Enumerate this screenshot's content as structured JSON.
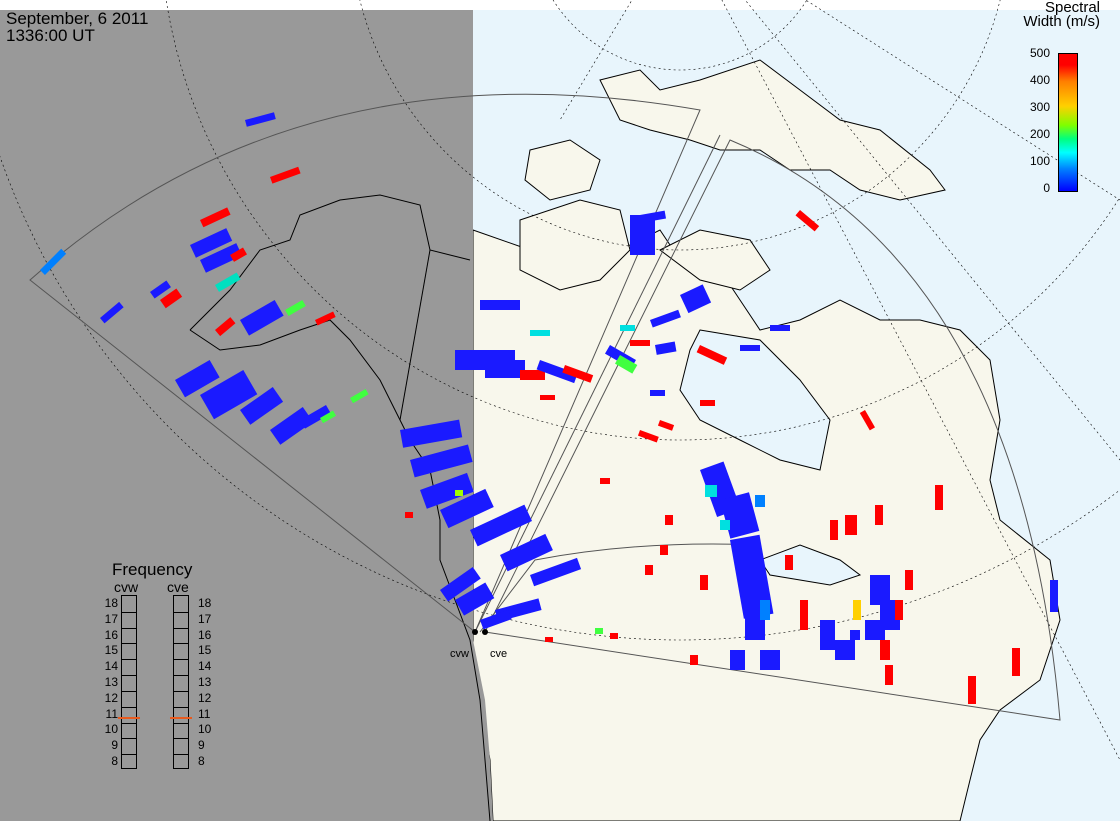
{
  "header": {
    "date": "September, 6 2011",
    "time": "1336:00 UT"
  },
  "colorbar": {
    "title_line1": "Spectral",
    "title_line2": "Width (m/s)",
    "ticks": [
      "500",
      "400",
      "300",
      "200",
      "100",
      "0"
    ],
    "min": 0,
    "max": 500
  },
  "frequency_panel": {
    "title": "Frequency",
    "radars": [
      {
        "label": "cvw",
        "selected_mhz": 10.7
      },
      {
        "label": "cve",
        "selected_mhz": 10.7
      }
    ],
    "ticks": [
      "18",
      "17",
      "16",
      "15",
      "14",
      "13",
      "12",
      "11",
      "10",
      "9",
      "8"
    ],
    "min": 8,
    "max": 18
  },
  "stations": [
    {
      "label": "cvw"
    },
    {
      "label": "cve"
    }
  ],
  "colors": {
    "night": "#999999",
    "ocean": "#e8f5fc",
    "land": "#f8f7ec",
    "scatter_low": "#1a1aff",
    "scatter_high": "#ff0000",
    "indicator": "#e85a1e"
  }
}
